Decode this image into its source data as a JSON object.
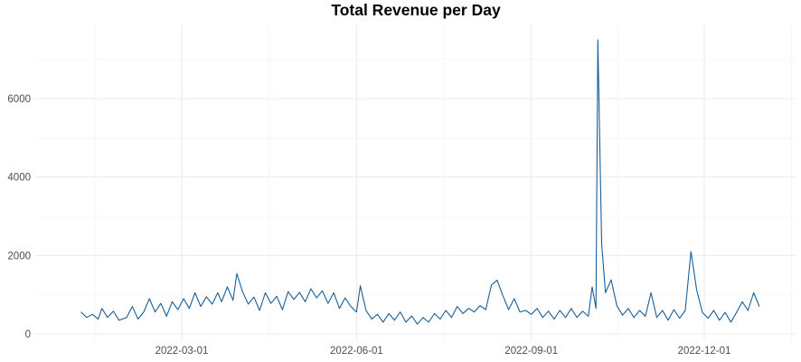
{
  "chart_data": {
    "type": "line",
    "title": "Total Revenue per Day",
    "xlabel": "",
    "ylabel": "",
    "x_range": [
      "2022-01-01",
      "2022-12-31"
    ],
    "ylim": [
      0,
      7600
    ],
    "x_ticks": [
      {
        "date": "2022-03-01",
        "label": "2022-03-01"
      },
      {
        "date": "2022-06-01",
        "label": "2022-06-01"
      },
      {
        "date": "2022-09-01",
        "label": "2022-09-01"
      },
      {
        "date": "2022-12-01",
        "label": "2022-12-01"
      }
    ],
    "y_ticks": [
      {
        "value": 0,
        "label": "0"
      },
      {
        "value": 2000,
        "label": "2000"
      },
      {
        "value": 4000,
        "label": "4000"
      },
      {
        "value": 6000,
        "label": "6000"
      }
    ],
    "grid": true,
    "line_color": "#1a5e99",
    "series": [
      {
        "name": "",
        "points": [
          [
            "2022-01-07",
            560
          ],
          [
            "2022-01-10",
            420
          ],
          [
            "2022-01-13",
            500
          ],
          [
            "2022-01-16",
            380
          ],
          [
            "2022-01-18",
            650
          ],
          [
            "2022-01-21",
            420
          ],
          [
            "2022-01-24",
            580
          ],
          [
            "2022-01-27",
            350
          ],
          [
            "2022-01-31",
            420
          ],
          [
            "2022-02-03",
            700
          ],
          [
            "2022-02-06",
            380
          ],
          [
            "2022-02-09",
            560
          ],
          [
            "2022-02-12",
            900
          ],
          [
            "2022-02-15",
            560
          ],
          [
            "2022-02-18",
            780
          ],
          [
            "2022-02-21",
            450
          ],
          [
            "2022-02-24",
            820
          ],
          [
            "2022-02-27",
            620
          ],
          [
            "2022-03-02",
            900
          ],
          [
            "2022-03-05",
            650
          ],
          [
            "2022-03-08",
            1050
          ],
          [
            "2022-03-11",
            700
          ],
          [
            "2022-03-14",
            950
          ],
          [
            "2022-03-17",
            760
          ],
          [
            "2022-03-20",
            1050
          ],
          [
            "2022-03-22",
            820
          ],
          [
            "2022-03-25",
            1200
          ],
          [
            "2022-03-28",
            860
          ],
          [
            "2022-03-30",
            1540
          ],
          [
            "2022-04-02",
            1080
          ],
          [
            "2022-04-05",
            760
          ],
          [
            "2022-04-08",
            940
          ],
          [
            "2022-04-11",
            600
          ],
          [
            "2022-04-14",
            1050
          ],
          [
            "2022-04-17",
            780
          ],
          [
            "2022-04-20",
            960
          ],
          [
            "2022-04-23",
            620
          ],
          [
            "2022-04-26",
            1080
          ],
          [
            "2022-04-29",
            880
          ],
          [
            "2022-05-02",
            1060
          ],
          [
            "2022-05-05",
            820
          ],
          [
            "2022-05-08",
            1150
          ],
          [
            "2022-05-11",
            920
          ],
          [
            "2022-05-14",
            1100
          ],
          [
            "2022-05-17",
            780
          ],
          [
            "2022-05-20",
            1050
          ],
          [
            "2022-05-23",
            650
          ],
          [
            "2022-05-26",
            920
          ],
          [
            "2022-05-29",
            700
          ],
          [
            "2022-06-01",
            560
          ],
          [
            "2022-06-03",
            1230
          ],
          [
            "2022-06-06",
            600
          ],
          [
            "2022-06-09",
            380
          ],
          [
            "2022-06-12",
            500
          ],
          [
            "2022-06-15",
            300
          ],
          [
            "2022-06-18",
            520
          ],
          [
            "2022-06-21",
            350
          ],
          [
            "2022-06-24",
            560
          ],
          [
            "2022-06-27",
            300
          ],
          [
            "2022-06-30",
            460
          ],
          [
            "2022-07-03",
            250
          ],
          [
            "2022-07-06",
            420
          ],
          [
            "2022-07-09",
            300
          ],
          [
            "2022-07-12",
            520
          ],
          [
            "2022-07-15",
            380
          ],
          [
            "2022-07-18",
            600
          ],
          [
            "2022-07-21",
            420
          ],
          [
            "2022-07-24",
            700
          ],
          [
            "2022-07-27",
            520
          ],
          [
            "2022-07-30",
            650
          ],
          [
            "2022-08-02",
            560
          ],
          [
            "2022-08-05",
            720
          ],
          [
            "2022-08-08",
            620
          ],
          [
            "2022-08-11",
            1250
          ],
          [
            "2022-08-14",
            1370
          ],
          [
            "2022-08-17",
            980
          ],
          [
            "2022-08-20",
            620
          ],
          [
            "2022-08-23",
            900
          ],
          [
            "2022-08-26",
            560
          ],
          [
            "2022-08-29",
            600
          ],
          [
            "2022-09-01",
            500
          ],
          [
            "2022-09-04",
            650
          ],
          [
            "2022-09-07",
            420
          ],
          [
            "2022-09-10",
            580
          ],
          [
            "2022-09-13",
            380
          ],
          [
            "2022-09-16",
            600
          ],
          [
            "2022-09-19",
            420
          ],
          [
            "2022-09-22",
            650
          ],
          [
            "2022-09-25",
            420
          ],
          [
            "2022-09-28",
            580
          ],
          [
            "2022-10-01",
            450
          ],
          [
            "2022-10-03",
            1200
          ],
          [
            "2022-10-05",
            650
          ],
          [
            "2022-10-06",
            7500
          ],
          [
            "2022-10-08",
            2300
          ],
          [
            "2022-10-10",
            1050
          ],
          [
            "2022-10-13",
            1380
          ],
          [
            "2022-10-16",
            720
          ],
          [
            "2022-10-19",
            480
          ],
          [
            "2022-10-22",
            650
          ],
          [
            "2022-10-25",
            420
          ],
          [
            "2022-10-28",
            600
          ],
          [
            "2022-10-31",
            450
          ],
          [
            "2022-11-03",
            1050
          ],
          [
            "2022-11-06",
            420
          ],
          [
            "2022-11-09",
            600
          ],
          [
            "2022-11-12",
            350
          ],
          [
            "2022-11-15",
            620
          ],
          [
            "2022-11-18",
            400
          ],
          [
            "2022-11-21",
            600
          ],
          [
            "2022-11-24",
            2100
          ],
          [
            "2022-11-27",
            1120
          ],
          [
            "2022-11-30",
            550
          ],
          [
            "2022-12-03",
            400
          ],
          [
            "2022-12-06",
            600
          ],
          [
            "2022-12-09",
            350
          ],
          [
            "2022-12-12",
            550
          ],
          [
            "2022-12-15",
            300
          ],
          [
            "2022-12-18",
            550
          ],
          [
            "2022-12-21",
            820
          ],
          [
            "2022-12-24",
            600
          ],
          [
            "2022-12-27",
            1050
          ],
          [
            "2022-12-30",
            700
          ]
        ]
      }
    ]
  }
}
